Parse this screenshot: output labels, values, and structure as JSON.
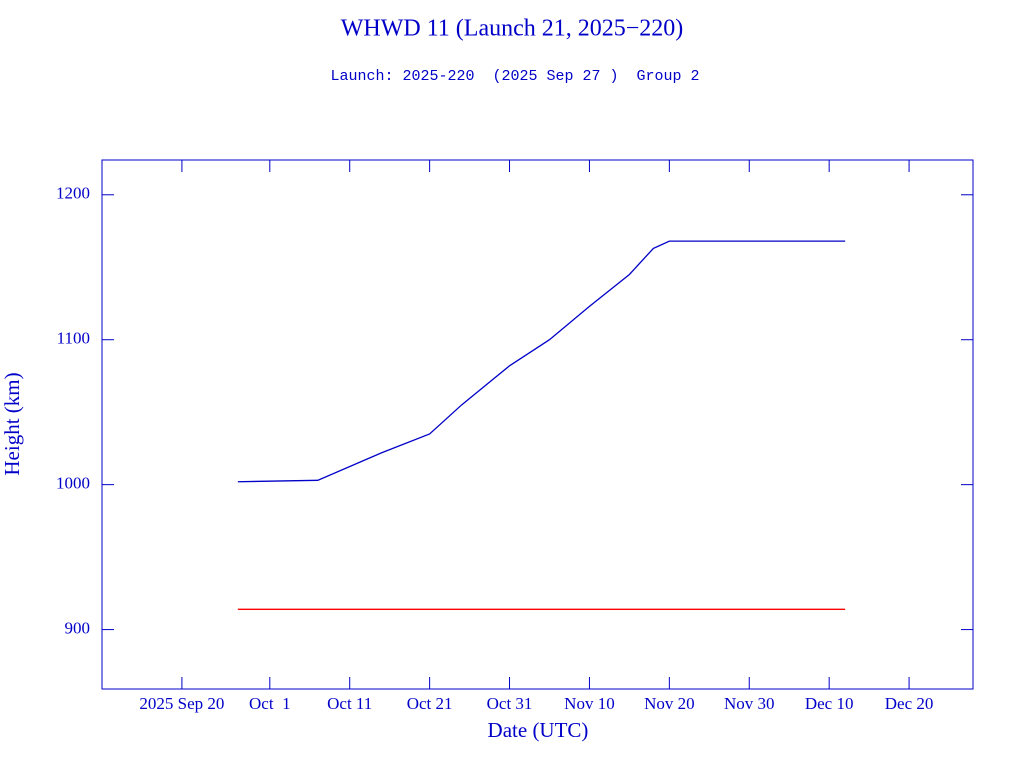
{
  "chart_data": {
    "type": "line",
    "title": "WHWD 11 (Launch 21, 2025−220)",
    "subtitle": "Launch: 2025-220  (2025 Sep 27 )  Group 2",
    "x_label": "Date (UTC)",
    "y_label": "Height (km)",
    "x": [
      "2025-09-27",
      "2025-10-07",
      "2025-10-15",
      "2025-10-21",
      "2025-10-25",
      "2025-10-31",
      "2025-11-05",
      "2025-11-10",
      "2025-11-15",
      "2025-11-18",
      "2025-11-20",
      "2025-12-12"
    ],
    "series": [
      {
        "color": "#0000c8",
        "values": [
          1002,
          1003,
          1022,
          1035,
          1055,
          1082,
          1100,
          1123,
          1145,
          1163,
          1168,
          1168
        ]
      },
      {
        "color": "#ff0000",
        "values": [
          914,
          914,
          914,
          914,
          914,
          914,
          914,
          914,
          914,
          914,
          914,
          914
        ]
      }
    ],
    "xlim": [
      "2025-09-10",
      "2025-12-28"
    ],
    "xticks": [
      {
        "value": "2025-09-20",
        "label": "2025 Sep 20"
      },
      {
        "value": "2025-10-01",
        "label": "Oct  1"
      },
      {
        "value": "2025-10-11",
        "label": "Oct 11"
      },
      {
        "value": "2025-10-21",
        "label": "Oct 21"
      },
      {
        "value": "2025-10-31",
        "label": "Oct 31"
      },
      {
        "value": "2025-11-10",
        "label": "Nov 10"
      },
      {
        "value": "2025-11-20",
        "label": "Nov 20"
      },
      {
        "value": "2025-11-30",
        "label": "Nov 30"
      },
      {
        "value": "2025-12-10",
        "label": "Dec 10"
      },
      {
        "value": "2025-12-20",
        "label": "Dec 20"
      }
    ],
    "ylim": [
      859,
      1224
    ],
    "yticks": [
      900,
      1000,
      1100,
      1200
    ],
    "grid": false
  }
}
